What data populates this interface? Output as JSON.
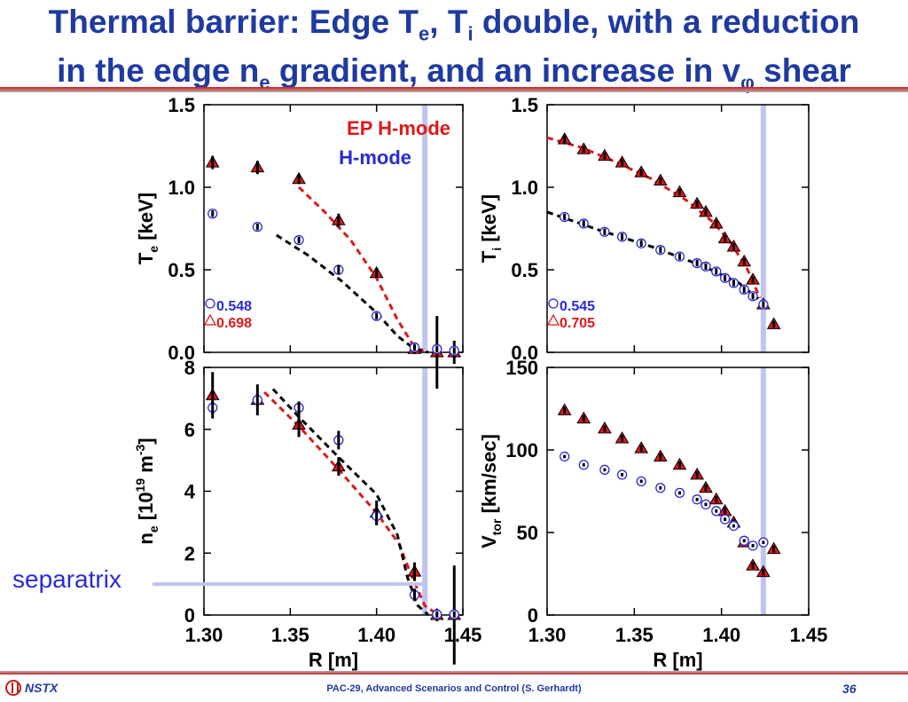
{
  "slide": {
    "title_line1_a": "Thermal barrier: Edge T",
    "title_line1_sub1": "e",
    "title_line1_b": ", T",
    "title_line1_sub2": "i",
    "title_line1_c": " double, with a reduction",
    "title_line2_a": "in the edge n",
    "title_line2_sub1": "e",
    "title_line2_b": " gradient, and an increase in v",
    "title_line2_sub2": "φ",
    "title_line2_c": " shear",
    "separatrix_label": "separatrix",
    "footer_logo": "NSTX",
    "footer_text": "PAC-29, Advanced Scenarios and Control (S. Gerhardt)",
    "page_number": "36"
  },
  "colors": {
    "title": "#1f3aa0",
    "ep": "#e01818",
    "h": "#2a2ad8",
    "separatrix": "#c0c4f0"
  },
  "chart_data": [
    {
      "id": "te",
      "type": "scatter",
      "ylabel": "T_e [keV]",
      "xlim": [
        1.3,
        1.45
      ],
      "ylim": [
        0,
        1.5
      ],
      "yticks": [
        "0.0",
        "0.5",
        "1.0",
        "1.5"
      ],
      "separatrix_x": 1.428,
      "legend": [
        "EP H-mode",
        "H-mode"
      ],
      "labels": [
        {
          "text": "0.548",
          "series": "H-mode"
        },
        {
          "text": "0.698",
          "series": "EP H-mode"
        }
      ],
      "series": [
        {
          "name": "EP H-mode",
          "marker": "triangle",
          "x": [
            1.305,
            1.331,
            1.355,
            1.378,
            1.4,
            1.422,
            1.435,
            1.445
          ],
          "y": [
            1.15,
            1.12,
            1.05,
            0.8,
            0.48,
            0.02,
            0.0,
            0.0
          ],
          "err": [
            0.04,
            0.04,
            0.03,
            0.04,
            0.03,
            0.03,
            0.22,
            0.07
          ]
        },
        {
          "name": "H-mode",
          "marker": "circle",
          "x": [
            1.305,
            1.331,
            1.355,
            1.378,
            1.4,
            1.422,
            1.435,
            1.445
          ],
          "y": [
            0.84,
            0.76,
            0.68,
            0.5,
            0.22,
            0.03,
            0.02,
            0.01
          ],
          "err": [
            0.02,
            0.02,
            0.02,
            0.03,
            0.02,
            0.02,
            0.02,
            0.02
          ]
        }
      ],
      "fits": [
        {
          "series": "EP H-mode",
          "x": [
            1.355,
            1.37,
            1.385,
            1.4,
            1.412,
            1.422,
            1.43
          ],
          "y": [
            1.0,
            0.85,
            0.68,
            0.45,
            0.2,
            0.03,
            0.0
          ]
        },
        {
          "series": "H-mode",
          "x": [
            1.342,
            1.36,
            1.38,
            1.4,
            1.412,
            1.422,
            1.43
          ],
          "y": [
            0.71,
            0.59,
            0.43,
            0.24,
            0.1,
            0.02,
            0.0
          ]
        }
      ]
    },
    {
      "id": "ti",
      "type": "scatter",
      "ylabel": "T_i [keV]",
      "xlim": [
        1.3,
        1.45
      ],
      "ylim": [
        0,
        1.5
      ],
      "yticks": [
        "0.0",
        "0.5",
        "1.0",
        "1.5"
      ],
      "separatrix_x": 1.424,
      "labels": [
        {
          "text": "0.545",
          "series": "H-mode"
        },
        {
          "text": "0.705",
          "series": "EP H-mode"
        }
      ],
      "series": [
        {
          "name": "EP H-mode",
          "marker": "triangle",
          "x": [
            1.31,
            1.321,
            1.333,
            1.343,
            1.354,
            1.365,
            1.376,
            1.386,
            1.391,
            1.397,
            1.402,
            1.407,
            1.413,
            1.418,
            1.424,
            1.43
          ],
          "y": [
            1.29,
            1.23,
            1.19,
            1.15,
            1.09,
            1.04,
            0.97,
            0.9,
            0.85,
            0.78,
            0.69,
            0.64,
            0.55,
            0.44,
            0.29,
            0.17
          ],
          "err": [
            0.03,
            0.02,
            0.02,
            0.02,
            0.02,
            0.02,
            0.02,
            0.02,
            0.02,
            0.02,
            0.02,
            0.02,
            0.02,
            0.02,
            0.02,
            0.02
          ]
        },
        {
          "name": "H-mode",
          "marker": "circle",
          "x": [
            1.31,
            1.321,
            1.333,
            1.343,
            1.354,
            1.365,
            1.376,
            1.386,
            1.391,
            1.397,
            1.402,
            1.407,
            1.413,
            1.418,
            1.424
          ],
          "y": [
            0.82,
            0.78,
            0.73,
            0.7,
            0.66,
            0.62,
            0.58,
            0.54,
            0.52,
            0.49,
            0.45,
            0.42,
            0.38,
            0.34,
            0.29
          ],
          "err": [
            0.02,
            0.02,
            0.02,
            0.02,
            0.02,
            0.02,
            0.02,
            0.02,
            0.02,
            0.02,
            0.02,
            0.02,
            0.02,
            0.02,
            0.02
          ]
        }
      ],
      "fits": [
        {
          "series": "EP H-mode",
          "x": [
            1.3,
            1.32,
            1.34,
            1.36,
            1.38,
            1.395,
            1.405,
            1.415,
            1.422
          ],
          "y": [
            1.3,
            1.24,
            1.15,
            1.05,
            0.92,
            0.79,
            0.67,
            0.5,
            0.33
          ]
        },
        {
          "series": "H-mode",
          "x": [
            1.3,
            1.33,
            1.36,
            1.39,
            1.41,
            1.424
          ],
          "y": [
            0.85,
            0.74,
            0.64,
            0.52,
            0.42,
            0.3
          ]
        }
      ]
    },
    {
      "id": "ne",
      "type": "scatter",
      "ylabel": "n_e [10^19 m^-3]",
      "xlabel": "R [m]",
      "xlim": [
        1.3,
        1.45
      ],
      "ylim": [
        0,
        8
      ],
      "xticks": [
        "1.30",
        "1.35",
        "1.40",
        "1.45"
      ],
      "yticks": [
        "0",
        "2",
        "4",
        "6",
        "8"
      ],
      "separatrix_x": 1.428,
      "separatrix_y": 1.0,
      "series": [
        {
          "name": "EP H-mode",
          "marker": "triangle",
          "x": [
            1.305,
            1.331,
            1.355,
            1.378,
            1.4,
            1.422,
            1.435,
            1.445
          ],
          "y": [
            7.1,
            6.95,
            6.15,
            4.8,
            3.3,
            1.4,
            0.0,
            0.0
          ],
          "err": [
            0.75,
            0.5,
            0.4,
            0.3,
            0.4,
            0.3,
            0.2,
            1.6
          ]
        },
        {
          "name": "H-mode",
          "marker": "circle",
          "x": [
            1.305,
            1.331,
            1.355,
            1.378,
            1.4,
            1.422,
            1.435,
            1.445
          ],
          "y": [
            6.7,
            6.95,
            6.7,
            5.65,
            3.2,
            0.65,
            0.02,
            0.02
          ],
          "err": [
            0.2,
            0.2,
            0.2,
            0.3,
            0.25,
            0.2,
            0.1,
            0.1
          ]
        }
      ],
      "fits": [
        {
          "series": "EP H-mode",
          "x": [
            1.335,
            1.355,
            1.378,
            1.4,
            1.413,
            1.42,
            1.428,
            1.436
          ],
          "y": [
            7.2,
            6.1,
            4.7,
            3.3,
            2.3,
            1.3,
            0.3,
            0.0
          ]
        },
        {
          "series": "H-mode",
          "x": [
            1.34,
            1.355,
            1.378,
            1.4,
            1.412,
            1.418,
            1.424,
            1.43
          ],
          "y": [
            7.3,
            6.4,
            5.1,
            3.9,
            2.6,
            1.2,
            0.3,
            0.0
          ]
        }
      ]
    },
    {
      "id": "vtor",
      "type": "scatter",
      "ylabel": "V_tor [km/sec]",
      "xlabel": "R [m]",
      "xlim": [
        1.3,
        1.45
      ],
      "ylim": [
        0,
        150
      ],
      "xticks": [
        "1.30",
        "1.35",
        "1.40",
        "1.45"
      ],
      "yticks": [
        "0",
        "50",
        "100",
        "150"
      ],
      "separatrix_x": 1.424,
      "series": [
        {
          "name": "EP H-mode",
          "marker": "triangle",
          "x": [
            1.31,
            1.321,
            1.333,
            1.343,
            1.354,
            1.365,
            1.376,
            1.386,
            1.391,
            1.397,
            1.402,
            1.407,
            1.413,
            1.418,
            1.424,
            1.43
          ],
          "y": [
            124,
            119,
            113,
            107,
            101,
            96,
            91,
            85,
            77,
            70,
            63,
            56,
            44,
            30,
            26,
            40
          ],
          "err": [
            2,
            2,
            2,
            2,
            2,
            2,
            2,
            2,
            2,
            2,
            2,
            2,
            2,
            2,
            2,
            2
          ]
        },
        {
          "name": "H-mode",
          "marker": "circle",
          "x": [
            1.31,
            1.321,
            1.333,
            1.343,
            1.354,
            1.365,
            1.376,
            1.386,
            1.391,
            1.397,
            1.402,
            1.407,
            1.413,
            1.418,
            1.424
          ],
          "y": [
            96,
            91,
            88,
            85,
            81,
            77,
            74,
            70,
            67,
            63,
            58,
            54,
            45,
            42,
            44
          ],
          "err": [
            1,
            1,
            1,
            1,
            1,
            1,
            1,
            1,
            1,
            1,
            1,
            1,
            1,
            1,
            1
          ]
        }
      ]
    }
  ]
}
